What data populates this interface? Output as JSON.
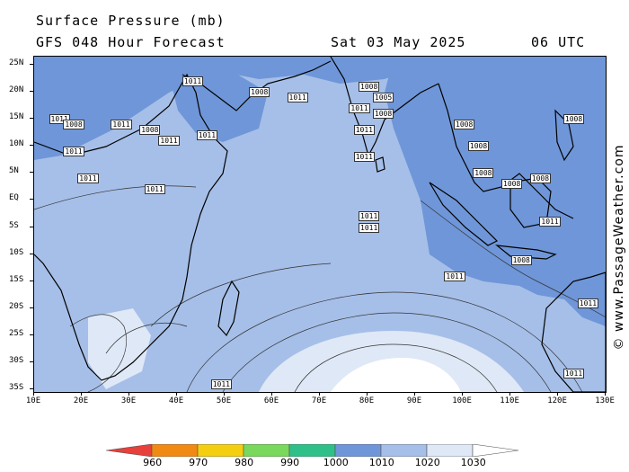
{
  "header": {
    "title": "Surface Pressure (mb)",
    "subtitle": "GFS 048 Hour Forecast",
    "date": "Sat 03 May 2025",
    "time": "06 UTC"
  },
  "credit": "© www.PassageWeather.com",
  "map": {
    "lat_labels": [
      "25N",
      "20N",
      "15N",
      "10N",
      "5N",
      "EQ",
      "5S",
      "10S",
      "15S",
      "20S",
      "25S",
      "30S",
      "35S"
    ],
    "lon_labels": [
      "10E",
      "20E",
      "30E",
      "40E",
      "50E",
      "60E",
      "70E",
      "80E",
      "90E",
      "100E",
      "110E",
      "120E",
      "130E"
    ],
    "isobar_labels": [
      {
        "text": "1011",
        "lon": 43,
        "lat": 22
      },
      {
        "text": "1008",
        "lon": 57,
        "lat": 20
      },
      {
        "text": "1011",
        "lon": 65,
        "lat": 19
      },
      {
        "text": "1008",
        "lon": 80,
        "lat": 21
      },
      {
        "text": "1011",
        "lon": 78,
        "lat": 17
      },
      {
        "text": "1005",
        "lon": 83,
        "lat": 19
      },
      {
        "text": "1008",
        "lon": 83,
        "lat": 16
      },
      {
        "text": "1011",
        "lon": 15,
        "lat": 15
      },
      {
        "text": "1008",
        "lon": 18,
        "lat": 14
      },
      {
        "text": "1011",
        "lon": 28,
        "lat": 14
      },
      {
        "text": "1008",
        "lon": 34,
        "lat": 13
      },
      {
        "text": "1011",
        "lon": 46,
        "lat": 12
      },
      {
        "text": "1011",
        "lon": 38,
        "lat": 11
      },
      {
        "text": "1011",
        "lon": 18,
        "lat": 9
      },
      {
        "text": "1011",
        "lon": 21,
        "lat": 4
      },
      {
        "text": "1011",
        "lon": 35,
        "lat": 2
      },
      {
        "text": "1011",
        "lon": 79,
        "lat": 13
      },
      {
        "text": "1011",
        "lon": 79,
        "lat": 8
      },
      {
        "text": "1011",
        "lon": 80,
        "lat": -3
      },
      {
        "text": "1011",
        "lon": 80,
        "lat": -5
      },
      {
        "text": "1008",
        "lon": 100,
        "lat": 14
      },
      {
        "text": "1008",
        "lon": 103,
        "lat": 10
      },
      {
        "text": "1008",
        "lon": 104,
        "lat": 5
      },
      {
        "text": "1008",
        "lon": 110,
        "lat": 3
      },
      {
        "text": "1008",
        "lon": 116,
        "lat": 4
      },
      {
        "text": "1011",
        "lon": 118,
        "lat": -4
      },
      {
        "text": "1008",
        "lon": 112,
        "lat": -11
      },
      {
        "text": "1011",
        "lon": 98,
        "lat": -14
      },
      {
        "text": "1008",
        "lon": 123,
        "lat": 15
      },
      {
        "text": "1011",
        "lon": 126,
        "lat": -19
      },
      {
        "text": "1011",
        "lon": 123,
        "lat": -32
      },
      {
        "text": "1011",
        "lon": 49,
        "lat": -34
      }
    ]
  },
  "colorbar": {
    "labels": [
      "960",
      "970",
      "980",
      "990",
      "1000",
      "1010",
      "1020",
      "1030"
    ],
    "colors": [
      "#e8403a",
      "#f08a12",
      "#f4cf10",
      "#7ad85c",
      "#2fc08a",
      "#6f96d8",
      "#a6bfe8",
      "#dfe8f6",
      "#ffffff"
    ]
  },
  "colors": {
    "ocean_mid": "#a6bfe8",
    "ocean_low": "#6f96d8",
    "ocean_high": "#dfe8f6",
    "land_outline": "#000000"
  }
}
